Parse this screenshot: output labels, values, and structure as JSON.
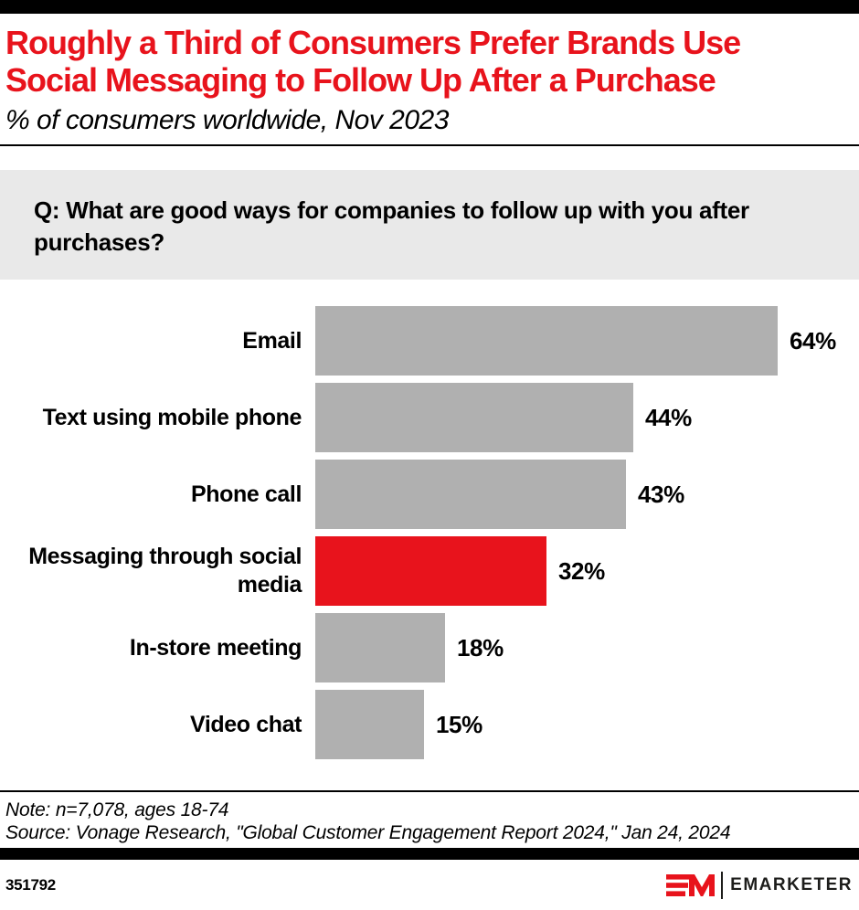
{
  "header": {
    "title": "Roughly a Third of Consumers Prefer Brands Use\nSocial Messaging to Follow Up After a Purchase",
    "subtitle": "% of consumers worldwide, Nov 2023"
  },
  "question": "Q: What are good ways for companies to follow up with you after\npurchases?",
  "chart_data": {
    "type": "bar",
    "orientation": "horizontal",
    "title": "Roughly a Third of Consumers Prefer Brands Use Social Messaging to Follow Up After a Purchase",
    "subtitle": "% of consumers worldwide, Nov 2023",
    "categories": [
      "Email",
      "Text using mobile phone",
      "Phone call",
      "Messaging through social media",
      "In-store meeting",
      "Video chat"
    ],
    "values": [
      64,
      44,
      43,
      32,
      18,
      15
    ],
    "value_labels": [
      "64%",
      "44%",
      "43%",
      "32%",
      "18%",
      "15%"
    ],
    "unit": "%",
    "xlim": [
      0,
      75
    ],
    "grid": false,
    "legend": "none",
    "highlight_index": 3,
    "bar_color": "#b0b0b0",
    "highlight_color": "#e8131c"
  },
  "footnotes": {
    "note": "Note: n=7,078, ages 18-74",
    "source": "Source: Vonage Research, \"Global Customer Engagement Report 2024,\" Jan 24, 2024"
  },
  "footer": {
    "chart_id": "351792",
    "brand_name": "EMARKETER"
  },
  "colors": {
    "accent_red": "#e8131c",
    "bar_gray": "#b0b0b0",
    "question_bg": "#e9e9e9",
    "bar_black": "#000000"
  }
}
